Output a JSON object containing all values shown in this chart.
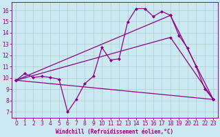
{
  "bg_color": "#cce8f0",
  "line_color": "#8b008b",
  "grid_color": "#aacccc",
  "xlabel": "Windchill (Refroidissement éolien,°C)",
  "ylim": [
    6.5,
    16.7
  ],
  "xlim": [
    -0.5,
    23.5
  ],
  "yticks": [
    7,
    8,
    9,
    10,
    11,
    12,
    13,
    14,
    15,
    16
  ],
  "xticks": [
    0,
    1,
    2,
    3,
    4,
    5,
    6,
    7,
    8,
    9,
    10,
    11,
    12,
    13,
    14,
    15,
    16,
    17,
    18,
    19,
    20,
    21,
    22,
    23
  ],
  "line1_x": [
    0,
    1,
    2,
    3,
    4,
    5,
    6,
    7,
    8,
    9,
    10,
    11,
    12,
    13,
    14,
    15,
    16,
    17,
    18,
    19,
    20,
    21,
    22,
    23
  ],
  "line1_y": [
    9.8,
    10.4,
    10.05,
    10.15,
    10.05,
    9.9,
    7.0,
    8.1,
    9.5,
    10.15,
    12.7,
    11.6,
    11.7,
    14.95,
    16.15,
    16.15,
    15.45,
    15.9,
    15.55,
    13.75,
    12.65,
    11.0,
    9.05,
    8.1
  ],
  "line2_x": [
    0,
    23
  ],
  "line2_y": [
    9.8,
    8.1
  ],
  "line3_x": [
    0,
    18,
    23
  ],
  "line3_y": [
    9.8,
    13.6,
    8.1
  ],
  "line4_x": [
    0,
    18,
    23
  ],
  "line4_y": [
    9.8,
    15.55,
    8.1
  ],
  "marker": "D",
  "markersize": 2.0,
  "linewidth": 0.9,
  "tick_fontsize": 5.5,
  "xlabel_fontsize": 5.5
}
